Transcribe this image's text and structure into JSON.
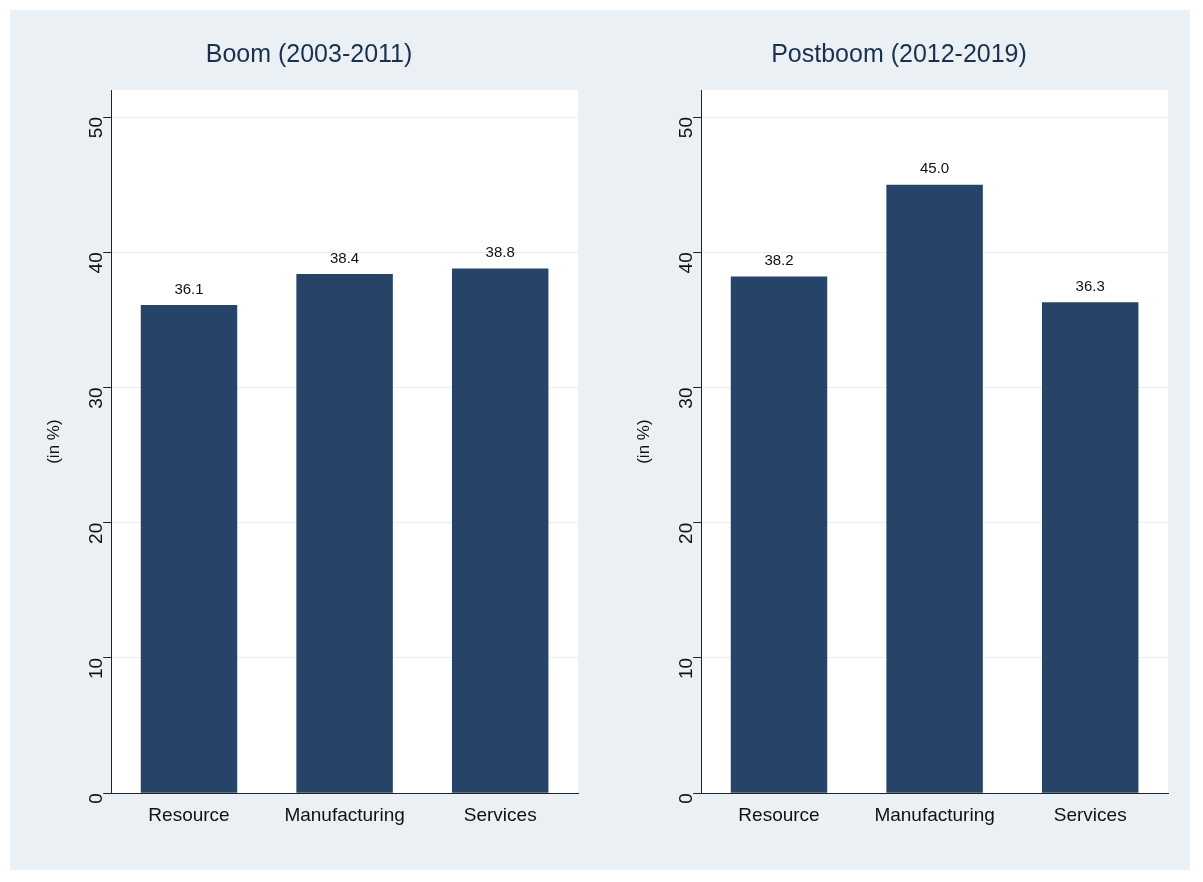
{
  "chart_data": [
    {
      "type": "bar",
      "title": "Boom (2003-2011)",
      "ylabel": "(in %)",
      "categories": [
        "Resource",
        "Manufacturing",
        "Services"
      ],
      "values": [
        36.1,
        38.4,
        38.8
      ],
      "value_labels": [
        "36.1",
        "38.4",
        "38.8"
      ],
      "color": "#264468",
      "ylim": [
        0,
        52
      ],
      "yticks": [
        0,
        10,
        20,
        30,
        40,
        50
      ],
      "grid": "y"
    },
    {
      "type": "bar",
      "title": "Postboom (2012-2019)",
      "ylabel": "(in %)",
      "categories": [
        "Resource",
        "Manufacturing",
        "Services"
      ],
      "values": [
        38.2,
        45.0,
        36.3
      ],
      "value_labels": [
        "38.2",
        "45.0",
        "36.3"
      ],
      "color": "#264468",
      "ylim": [
        0,
        52
      ],
      "yticks": [
        0,
        10,
        20,
        30,
        40,
        50
      ],
      "grid": "y"
    }
  ]
}
